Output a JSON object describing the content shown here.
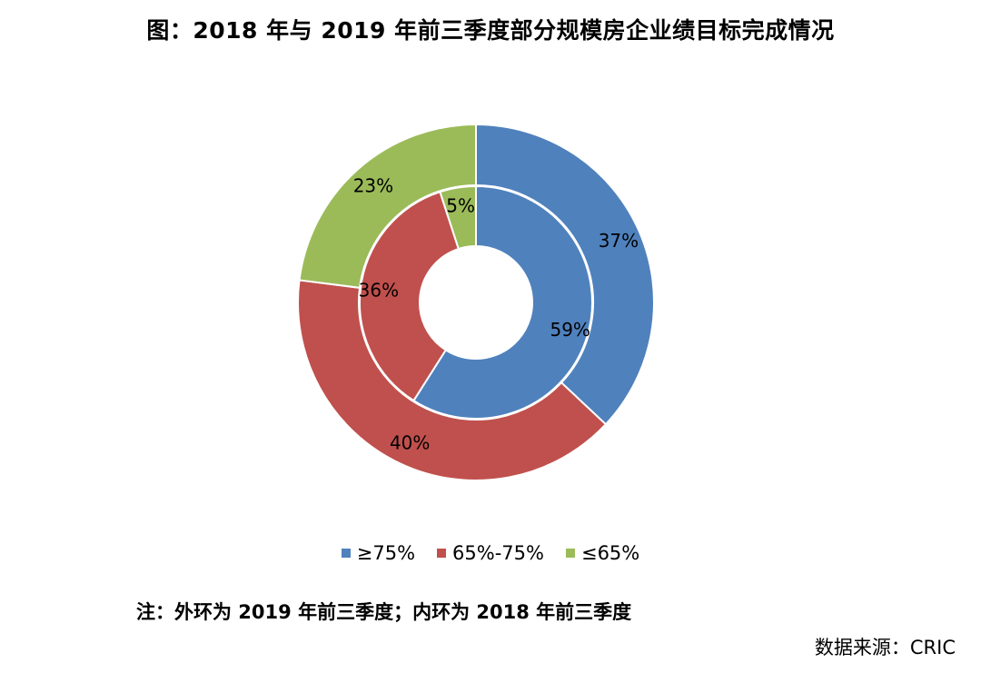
{
  "title": "图：2018 年与 2019 年前三季度部分规模房企业绩目标完成情况",
  "chart_data": {
    "type": "donut",
    "title": "图：2018 年与 2019 年前三季度部分规模房企业绩目标完成情况",
    "categories": [
      "≥75%",
      "65%-75%",
      "≤65%"
    ],
    "colors": [
      "#4F81BD",
      "#C0504D",
      "#9BBB59"
    ],
    "series": [
      {
        "name": "2019 年前三季度",
        "ring": "outer",
        "values": [
          37,
          40,
          23
        ],
        "labels": [
          "37%",
          "40%",
          "23%"
        ]
      },
      {
        "name": "2018 年前三季度",
        "ring": "inner",
        "values": [
          59,
          36,
          5
        ],
        "labels": [
          "59%",
          "36%",
          "5%"
        ]
      }
    ],
    "legend_position": "bottom"
  },
  "note": "注：外环为 2019 年前三季度；内环为 2018 年前三季度",
  "source": "数据来源：CRIC"
}
